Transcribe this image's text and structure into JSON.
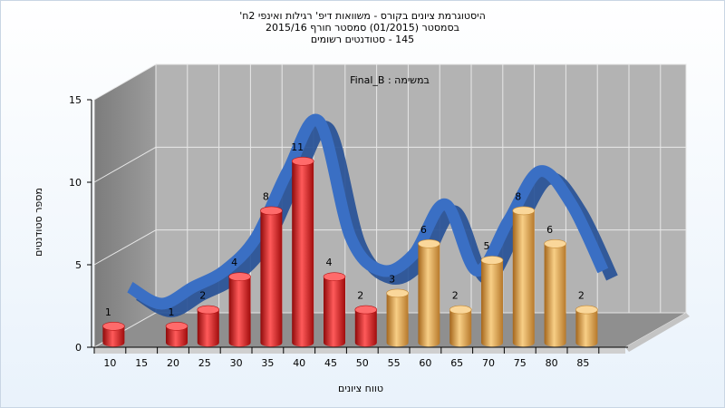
{
  "chart_data": {
    "type": "bar",
    "title_lines": [
      "היסטוגרמת ציונים בקורס - משוואות דיפ' רגילות ואינפי 2ח'",
      "בסמסטר  (01/2015)  סמסטר חורף 2015/16",
      "145 - סטודנטים רשומים"
    ],
    "subtitle": "במשימה : Final_B",
    "xlabel": "טווח ציונים",
    "ylabel": "מספר סטודנטים",
    "ylim": [
      0,
      15
    ],
    "yticks": [
      "0",
      "5",
      "10",
      "15"
    ],
    "categories": [
      "10",
      "15",
      "20",
      "25",
      "30",
      "35",
      "40",
      "45",
      "50",
      "55",
      "60",
      "65",
      "70",
      "75",
      "80",
      "85"
    ],
    "values": [
      1,
      0,
      1,
      2,
      4,
      8,
      11,
      4,
      2,
      3,
      6,
      2,
      5,
      8,
      6,
      2
    ],
    "data_labels": [
      "1",
      "",
      "1",
      "2",
      "4",
      "8",
      "11",
      "4",
      "2",
      "3",
      "6",
      "2",
      "5",
      "8",
      "6",
      "2"
    ],
    "bar_colors": [
      "#d81f1f",
      "#d81f1f",
      "#d81f1f",
      "#d81f1f",
      "#d81f1f",
      "#d81f1f",
      "#d81f1f",
      "#d81f1f",
      "#d81f1f",
      "#e0a040",
      "#e0a040",
      "#e0a040",
      "#e0a040",
      "#e0a040",
      "#e0a040",
      "#e0a040"
    ],
    "trend_color": "#3a6fc4",
    "grid": true
  }
}
